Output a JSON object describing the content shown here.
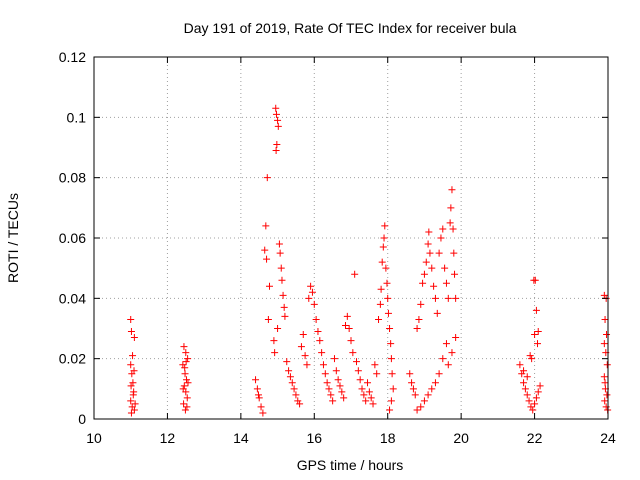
{
  "chart_data": {
    "type": "scatter",
    "title": "Day 191 of 2019, Rate Of TEC Index for receiver bula",
    "xlabel": "GPS time / hours",
    "ylabel": "ROTI / TECUs",
    "xlim": [
      10,
      24
    ],
    "ylim": [
      0,
      0.12
    ],
    "xticks": [
      "10",
      "12",
      "14",
      "16",
      "18",
      "20",
      "22",
      "24"
    ],
    "yticks": [
      "0",
      "0.02",
      "0.04",
      "0.06",
      "0.08",
      "0.1",
      "0.12"
    ],
    "grid": true,
    "marker": "plus",
    "series_color": "#ff0000",
    "points": [
      [
        11.0,
        0.033
      ],
      [
        11.02,
        0.029
      ],
      [
        11.05,
        0.021
      ],
      [
        11.1,
        0.027
      ],
      [
        11.0,
        0.018
      ],
      [
        11.03,
        0.015
      ],
      [
        11.06,
        0.012
      ],
      [
        11.08,
        0.009
      ],
      [
        11.0,
        0.006
      ],
      [
        11.04,
        0.004
      ],
      [
        11.1,
        0.003
      ],
      [
        11.02,
        0.002
      ],
      [
        11.07,
        0.008
      ],
      [
        11.12,
        0.005
      ],
      [
        11.09,
        0.016
      ],
      [
        11.01,
        0.011
      ],
      [
        12.45,
        0.024
      ],
      [
        12.5,
        0.022
      ],
      [
        12.55,
        0.02
      ],
      [
        12.42,
        0.018
      ],
      [
        12.48,
        0.015
      ],
      [
        12.52,
        0.013
      ],
      [
        12.46,
        0.011
      ],
      [
        12.5,
        0.009
      ],
      [
        12.54,
        0.007
      ],
      [
        12.44,
        0.005
      ],
      [
        12.49,
        0.003
      ],
      [
        12.53,
        0.004
      ],
      [
        12.47,
        0.017
      ],
      [
        12.51,
        0.019
      ],
      [
        12.43,
        0.01
      ],
      [
        12.56,
        0.012
      ],
      [
        14.4,
        0.013
      ],
      [
        14.45,
        0.01
      ],
      [
        14.5,
        0.007
      ],
      [
        14.55,
        0.004
      ],
      [
        14.6,
        0.002
      ],
      [
        14.48,
        0.008
      ],
      [
        14.65,
        0.056
      ],
      [
        14.68,
        0.064
      ],
      [
        14.7,
        0.053
      ],
      [
        14.72,
        0.08
      ],
      [
        14.75,
        0.033
      ],
      [
        14.78,
        0.044
      ],
      [
        14.95,
        0.103
      ],
      [
        14.97,
        0.101
      ],
      [
        15.0,
        0.099
      ],
      [
        15.02,
        0.097
      ],
      [
        14.98,
        0.091
      ],
      [
        14.96,
        0.089
      ],
      [
        15.05,
        0.058
      ],
      [
        15.07,
        0.055
      ],
      [
        15.1,
        0.05
      ],
      [
        15.12,
        0.046
      ],
      [
        15.15,
        0.041
      ],
      [
        15.18,
        0.037
      ],
      [
        15.2,
        0.034
      ],
      [
        15.0,
        0.03
      ],
      [
        14.9,
        0.026
      ],
      [
        14.92,
        0.022
      ],
      [
        15.25,
        0.019
      ],
      [
        15.3,
        0.016
      ],
      [
        15.35,
        0.014
      ],
      [
        15.4,
        0.012
      ],
      [
        15.45,
        0.01
      ],
      [
        15.5,
        0.008
      ],
      [
        15.55,
        0.006
      ],
      [
        15.6,
        0.005
      ],
      [
        15.65,
        0.024
      ],
      [
        15.7,
        0.028
      ],
      [
        15.75,
        0.021
      ],
      [
        15.8,
        0.018
      ],
      [
        15.85,
        0.04
      ],
      [
        15.9,
        0.044
      ],
      [
        15.95,
        0.042
      ],
      [
        16.0,
        0.038
      ],
      [
        16.05,
        0.033
      ],
      [
        16.1,
        0.029
      ],
      [
        16.15,
        0.026
      ],
      [
        16.2,
        0.022
      ],
      [
        16.25,
        0.018
      ],
      [
        16.3,
        0.015
      ],
      [
        16.35,
        0.012
      ],
      [
        16.4,
        0.01
      ],
      [
        16.45,
        0.008
      ],
      [
        16.5,
        0.006
      ],
      [
        16.55,
        0.02
      ],
      [
        16.6,
        0.016
      ],
      [
        16.65,
        0.013
      ],
      [
        16.7,
        0.011
      ],
      [
        16.75,
        0.009
      ],
      [
        16.8,
        0.007
      ],
      [
        16.85,
        0.031
      ],
      [
        16.9,
        0.034
      ],
      [
        16.95,
        0.03
      ],
      [
        17.0,
        0.026
      ],
      [
        17.05,
        0.022
      ],
      [
        17.1,
        0.048
      ],
      [
        17.15,
        0.019
      ],
      [
        17.2,
        0.016
      ],
      [
        17.25,
        0.013
      ],
      [
        17.3,
        0.01
      ],
      [
        17.35,
        0.008
      ],
      [
        17.4,
        0.006
      ],
      [
        17.45,
        0.012
      ],
      [
        17.5,
        0.009
      ],
      [
        17.55,
        0.007
      ],
      [
        17.6,
        0.005
      ],
      [
        17.65,
        0.018
      ],
      [
        17.7,
        0.015
      ],
      [
        17.75,
        0.033
      ],
      [
        17.8,
        0.038
      ],
      [
        17.82,
        0.043
      ],
      [
        17.85,
        0.052
      ],
      [
        17.88,
        0.057
      ],
      [
        17.9,
        0.06
      ],
      [
        17.92,
        0.064
      ],
      [
        17.95,
        0.05
      ],
      [
        17.98,
        0.045
      ],
      [
        18.0,
        0.04
      ],
      [
        18.02,
        0.035
      ],
      [
        18.05,
        0.03
      ],
      [
        18.08,
        0.025
      ],
      [
        18.1,
        0.02
      ],
      [
        18.12,
        0.015
      ],
      [
        18.15,
        0.01
      ],
      [
        18.1,
        0.006
      ],
      [
        18.05,
        0.003
      ],
      [
        18.6,
        0.015
      ],
      [
        18.65,
        0.012
      ],
      [
        18.7,
        0.01
      ],
      [
        18.75,
        0.008
      ],
      [
        18.8,
        0.03
      ],
      [
        18.85,
        0.033
      ],
      [
        18.9,
        0.038
      ],
      [
        18.95,
        0.045
      ],
      [
        19.0,
        0.048
      ],
      [
        19.05,
        0.052
      ],
      [
        19.1,
        0.058
      ],
      [
        19.12,
        0.062
      ],
      [
        19.15,
        0.055
      ],
      [
        19.2,
        0.05
      ],
      [
        19.25,
        0.044
      ],
      [
        19.3,
        0.04
      ],
      [
        19.35,
        0.035
      ],
      [
        19.4,
        0.055
      ],
      [
        19.45,
        0.06
      ],
      [
        19.5,
        0.063
      ],
      [
        19.55,
        0.05
      ],
      [
        19.6,
        0.045
      ],
      [
        19.65,
        0.04
      ],
      [
        19.7,
        0.065
      ],
      [
        19.72,
        0.07
      ],
      [
        19.75,
        0.076
      ],
      [
        19.78,
        0.063
      ],
      [
        19.8,
        0.055
      ],
      [
        19.82,
        0.048
      ],
      [
        19.85,
        0.04
      ],
      [
        19.6,
        0.025
      ],
      [
        19.5,
        0.02
      ],
      [
        19.4,
        0.015
      ],
      [
        19.3,
        0.012
      ],
      [
        19.2,
        0.01
      ],
      [
        19.1,
        0.008
      ],
      [
        19.0,
        0.006
      ],
      [
        18.9,
        0.004
      ],
      [
        18.8,
        0.003
      ],
      [
        19.65,
        0.018
      ],
      [
        19.75,
        0.022
      ],
      [
        19.85,
        0.027
      ],
      [
        21.6,
        0.018
      ],
      [
        21.65,
        0.015
      ],
      [
        21.7,
        0.012
      ],
      [
        21.75,
        0.01
      ],
      [
        21.8,
        0.008
      ],
      [
        21.85,
        0.006
      ],
      [
        21.9,
        0.004
      ],
      [
        21.95,
        0.003
      ],
      [
        22.0,
        0.005
      ],
      [
        22.05,
        0.007
      ],
      [
        22.1,
        0.009
      ],
      [
        22.15,
        0.011
      ],
      [
        21.88,
        0.021
      ],
      [
        21.92,
        0.02
      ],
      [
        22.0,
        0.028
      ],
      [
        22.02,
        0.046
      ],
      [
        21.98,
        0.046
      ],
      [
        22.05,
        0.036
      ],
      [
        22.08,
        0.025
      ],
      [
        22.1,
        0.029
      ],
      [
        21.7,
        0.016
      ],
      [
        21.8,
        0.014
      ],
      [
        23.9,
        0.041
      ],
      [
        23.95,
        0.04
      ],
      [
        23.92,
        0.033
      ],
      [
        23.96,
        0.028
      ],
      [
        23.9,
        0.025
      ],
      [
        23.94,
        0.022
      ],
      [
        23.98,
        0.018
      ],
      [
        23.9,
        0.014
      ],
      [
        23.93,
        0.01
      ],
      [
        23.97,
        0.008
      ],
      [
        23.91,
        0.006
      ],
      [
        23.95,
        0.004
      ],
      [
        23.99,
        0.003
      ],
      [
        23.92,
        0.012
      ]
    ]
  }
}
